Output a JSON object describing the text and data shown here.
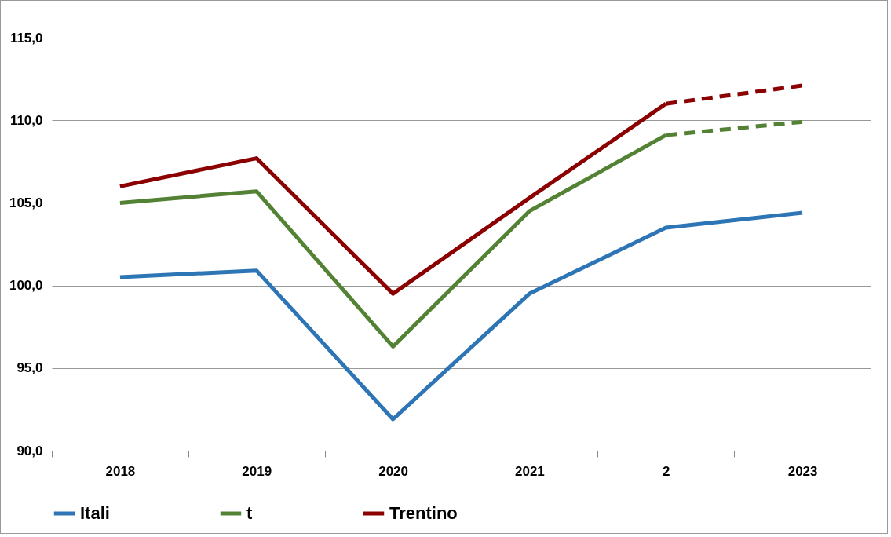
{
  "chart_data": {
    "type": "line",
    "categories": [
      "2018",
      "2019",
      "2020",
      "2021",
      "2",
      "2023"
    ],
    "ylim": [
      90,
      115
    ],
    "yticks": [
      {
        "value": 90,
        "label": "90,0"
      },
      {
        "value": 95,
        "label": "95,0"
      },
      {
        "value": 100,
        "label": "100,0"
      },
      {
        "value": 105,
        "label": "105,0"
      },
      {
        "value": 110,
        "label": "110,0"
      },
      {
        "value": 115,
        "label": "115,0"
      }
    ],
    "grid": "y",
    "legend": "bottom",
    "marker": "none",
    "series": [
      {
        "name": "Itali",
        "color": "#2e75b6",
        "line_style": "solid",
        "values": [
          100.5,
          100.9,
          91.9,
          99.5,
          103.5,
          104.4
        ]
      },
      {
        "name": "t",
        "color": "#548235",
        "line_style": "solid",
        "values": [
          105.0,
          105.7,
          96.3,
          104.5,
          109.1,
          null
        ]
      },
      {
        "color": "#548235",
        "line_style": "dashed",
        "values": [
          null,
          null,
          null,
          null,
          109.1,
          109.9
        ]
      },
      {
        "name": "Trentino",
        "color": "#8b0000",
        "line_style": "solid",
        "values": [
          106.0,
          107.7,
          99.5,
          105.3,
          111.0,
          null
        ]
      },
      {
        "color": "#8b0000",
        "line_style": "dashed",
        "values": [
          null,
          null,
          null,
          null,
          111.0,
          112.1
        ]
      }
    ]
  }
}
